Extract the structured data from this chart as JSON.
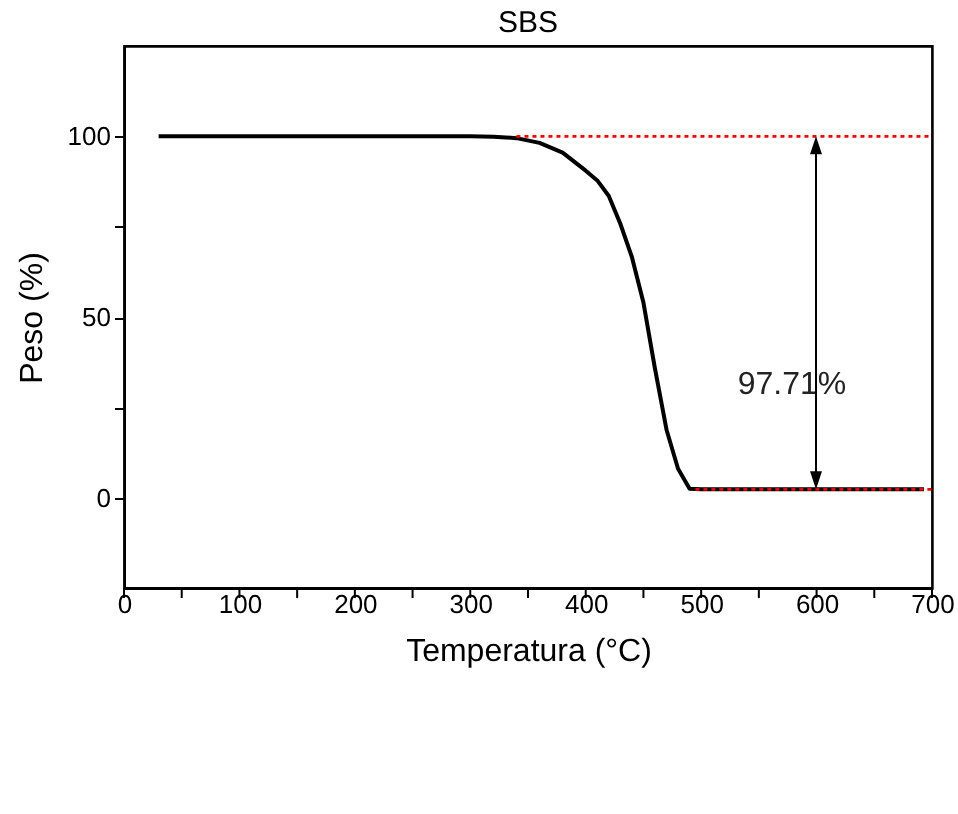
{
  "chart_data": {
    "type": "line",
    "title": "SBS",
    "xlabel": "Temperatura (°C)",
    "ylabel": "Peso (%)",
    "xlim": [
      0,
      700
    ],
    "ylim": [
      -25,
      125
    ],
    "xticks": [
      0,
      {
        "value": 50,
        "label": null
      },
      100,
      {
        "value": 150,
        "label": null
      },
      200,
      {
        "value": 250,
        "label": null
      },
      300,
      {
        "value": 350,
        "label": null
      },
      400,
      {
        "value": 450,
        "label": null
      },
      500,
      {
        "value": 550,
        "label": null
      },
      600,
      {
        "value": 650,
        "label": null
      },
      700
    ],
    "yticks": [
      0,
      {
        "value": 25,
        "label": null
      },
      50,
      {
        "value": 75,
        "label": null
      },
      100
    ],
    "grid": false,
    "series": [
      {
        "color": "#000000",
        "x": [
          30,
          100,
          200,
          300,
          320,
          340,
          360,
          380,
          400,
          410,
          420,
          430,
          440,
          450,
          460,
          470,
          480,
          490,
          500,
          600,
          693
        ],
        "values": [
          100,
          100,
          100,
          100,
          99.9,
          99.5,
          98.2,
          95.5,
          90.5,
          87.8,
          83.5,
          75.8,
          66.6,
          54,
          35.7,
          18.8,
          8,
          2.5,
          2.3,
          2.3,
          2.3
        ]
      },
      {
        "color": "#ff0000",
        "line_style": "dotted",
        "x": [
          340,
          700
        ],
        "values": [
          100,
          100
        ]
      },
      {
        "color": "#ff0000",
        "line_style": "dotted",
        "x": [
          495,
          700
        ],
        "values": [
          2.3,
          2.3
        ]
      }
    ],
    "annotations": [
      "97.71%"
    ]
  }
}
